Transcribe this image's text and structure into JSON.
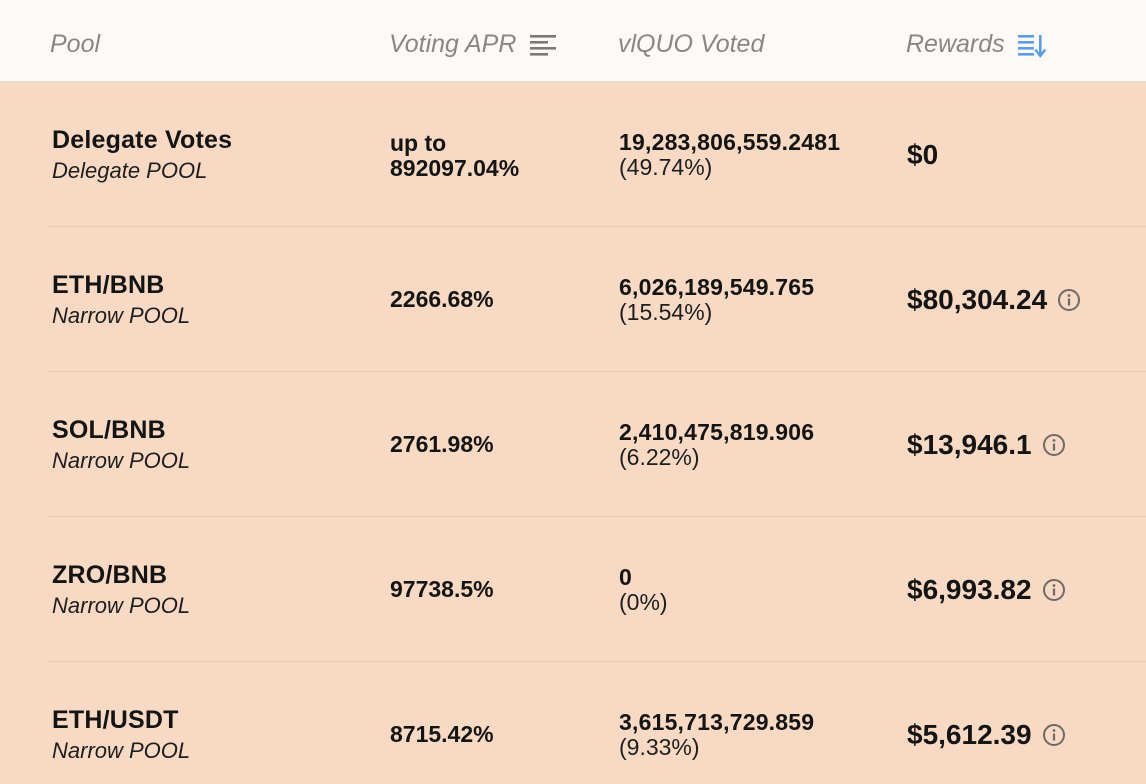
{
  "header": {
    "pool": "Pool",
    "voting_apr": "Voting APR",
    "voted": "vlQUO Voted",
    "rewards": "Rewards"
  },
  "icons": {
    "apr_sort": "sort-lines-icon",
    "rewards_sort": "sort-descending-icon",
    "info": "info-circle-icon"
  },
  "colors": {
    "header_bg": "#fdf9f6",
    "body_bg": "#f7d9c4",
    "sort_active": "#5b9ee6"
  },
  "rows": [
    {
      "name": "Delegate Votes",
      "type": "Delegate POOL",
      "apr_line1": "up to",
      "apr_line2": "892097.04%",
      "voted": "19,283,806,559.2481",
      "voted_pct": "(49.74%)",
      "reward": "$0"
    },
    {
      "name": "ETH/BNB",
      "type": "Narrow POOL",
      "apr_line1": "2266.68%",
      "apr_line2": "",
      "voted": "6,026,189,549.765",
      "voted_pct": "(15.54%)",
      "reward": "$80,304.24"
    },
    {
      "name": "SOL/BNB",
      "type": "Narrow POOL",
      "apr_line1": "2761.98%",
      "apr_line2": "",
      "voted": "2,410,475,819.906",
      "voted_pct": "(6.22%)",
      "reward": "$13,946.1"
    },
    {
      "name": "ZRO/BNB",
      "type": "Narrow POOL",
      "apr_line1": "97738.5%",
      "apr_line2": "",
      "voted": "0",
      "voted_pct": "(0%)",
      "reward": "$6,993.82"
    },
    {
      "name": "ETH/USDT",
      "type": "Narrow POOL",
      "apr_line1": "8715.42%",
      "apr_line2": "",
      "voted": "3,615,713,729.859",
      "voted_pct": "(9.33%)",
      "reward": "$5,612.39"
    }
  ]
}
